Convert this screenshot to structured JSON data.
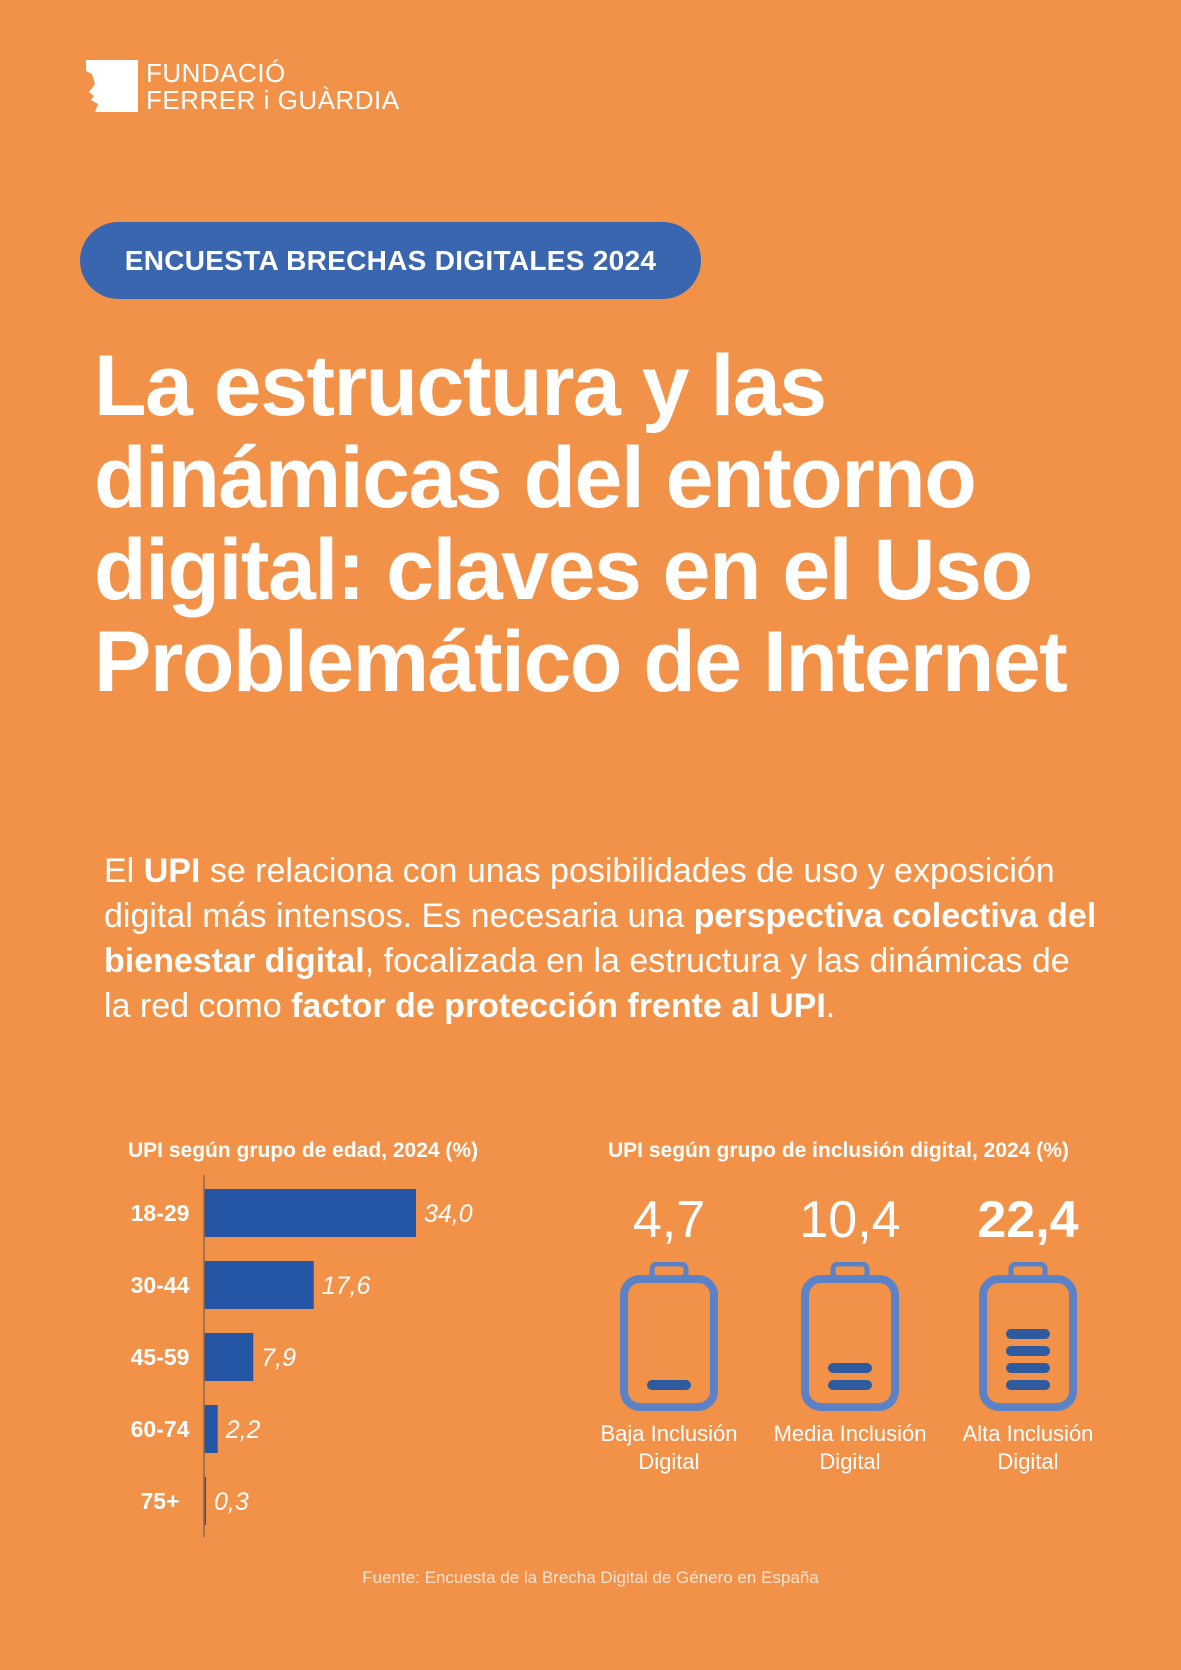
{
  "logo": {
    "line1": "FUNDACIÓ",
    "line2": "FERRER i GUÀRDIA"
  },
  "badge": "ENCUESTA BRECHAS DIGITALES 2024",
  "title": "La estructura y las dinámicas del entorno digital: claves en el Uso Problemático de Internet",
  "intro": [
    {
      "text": "El ",
      "bold": false
    },
    {
      "text": "UPI",
      "bold": true
    },
    {
      "text": " se relaciona con unas posibilidades de uso y exposición digital más intensos. Es necesaria una ",
      "bold": false
    },
    {
      "text": "perspectiva colectiva del bienestar digital",
      "bold": true
    },
    {
      "text": ", focalizada en la estructura y las dinámicas de la red como ",
      "bold": false
    },
    {
      "text": "factor de protección frente al UPI",
      "bold": true
    },
    {
      "text": ".",
      "bold": false
    }
  ],
  "colors": {
    "background": "#F29249",
    "badge": "#3A66AF",
    "bar": "#2456A5",
    "battery_outline": "#5B82C7",
    "battery_level": "#2E5A9E"
  },
  "chart_data": [
    {
      "type": "bar",
      "orientation": "horizontal",
      "title": "UPI según grupo de edad, 2024 (%)",
      "categories": [
        "18-29",
        "30-44",
        "45-59",
        "60-74",
        "75+"
      ],
      "values": [
        34.0,
        17.6,
        7.9,
        2.2,
        0.3
      ],
      "value_labels": [
        "34,0",
        "17,6",
        "7,9",
        "2,2",
        "0,3"
      ],
      "xlim": [
        0,
        34.0
      ]
    },
    {
      "type": "table",
      "title": "UPI según grupo de inclusión digital, 2024 (%)",
      "categories": [
        "Baja Inclusión Digital",
        "Media Inclusión Digital",
        "Alta Inclusión Digital"
      ],
      "values": [
        4.7,
        10.4,
        22.4
      ],
      "value_labels": [
        "4,7",
        "10,4",
        "22,4"
      ],
      "battery_levels": [
        1,
        2,
        4
      ],
      "icon": "battery-icon"
    }
  ],
  "source": "Fuente: Encuesta de la Brecha Digital de Género en España"
}
